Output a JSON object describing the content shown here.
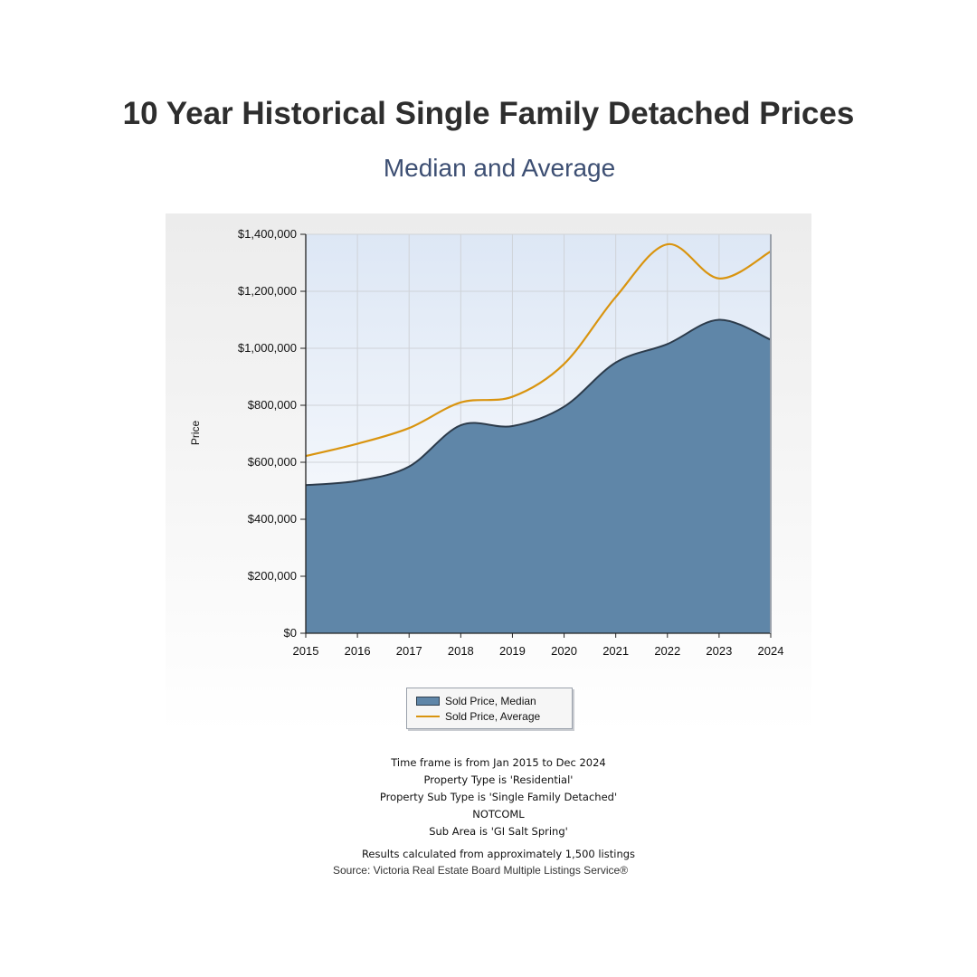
{
  "header": {
    "title": "10 Year Historical Single Family Detached Prices",
    "subtitle": "Median and Average"
  },
  "chart_data": {
    "type": "area",
    "title": "",
    "xlabel": "",
    "ylabel": "Price",
    "x": [
      "2015",
      "2016",
      "2017",
      "2018",
      "2019",
      "2020",
      "2021",
      "2022",
      "2023",
      "2024"
    ],
    "ylim": [
      0,
      1400000
    ],
    "yticks": [
      0,
      200000,
      400000,
      600000,
      800000,
      1000000,
      1200000,
      1400000
    ],
    "ytick_labels": [
      "$0",
      "$200,000",
      "$400,000",
      "$600,000",
      "$800,000",
      "$1,000,000",
      "$1,200,000",
      "$1,400,000"
    ],
    "grid": true,
    "legend_position": "bottom",
    "series": [
      {
        "name": "Sold Price, Median",
        "kind": "area",
        "color": "#5f86a8",
        "values": [
          520000,
          535000,
          585000,
          730000,
          727000,
          795000,
          950000,
          1015000,
          1100000,
          1030000
        ]
      },
      {
        "name": "Sold Price, Average",
        "kind": "line",
        "color": "#d9940f",
        "values": [
          622000,
          665000,
          720000,
          810000,
          830000,
          945000,
          1180000,
          1365000,
          1245000,
          1340000
        ]
      }
    ]
  },
  "notes": {
    "timeframe": "Time frame is from Jan 2015 to Dec 2024",
    "property_type": "Property Type is 'Residential'",
    "property_sub_type": "Property Sub Type is 'Single Family Detached'",
    "notcoml": "NOTCOML",
    "sub_area": "Sub Area is 'GI Salt Spring'",
    "results": "Results calculated from approximately 1,500 listings",
    "source": "Source: Victoria Real Estate Board Multiple Listings Service®"
  },
  "colors": {
    "median_fill": "#5f86a8",
    "average_line": "#d9940f",
    "title": "#2e2e2e",
    "subtitle": "#3d4f73"
  }
}
